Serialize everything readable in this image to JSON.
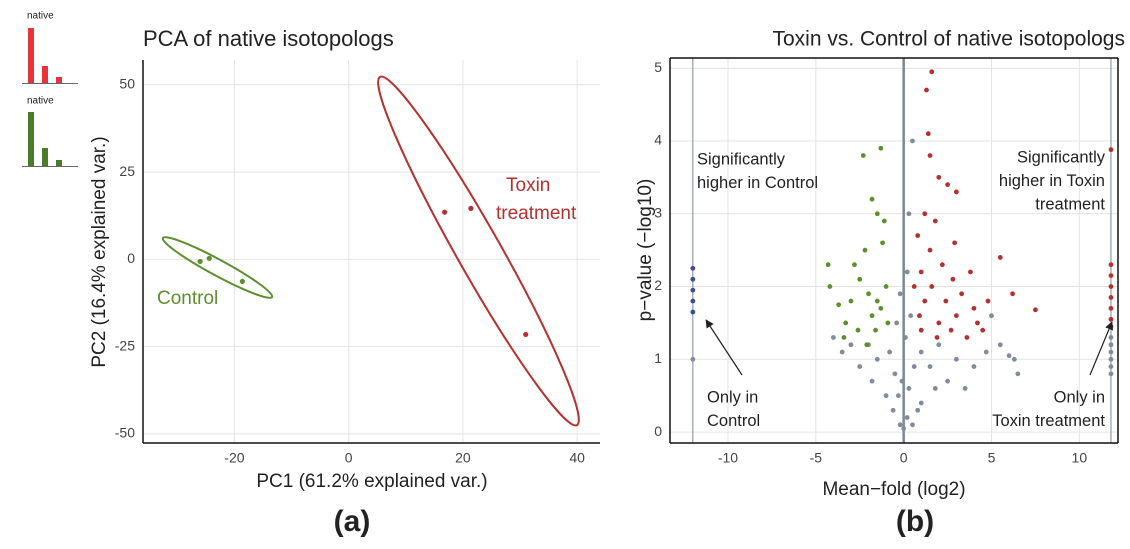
{
  "icons": [
    {
      "label": "native",
      "color": "#e8333a"
    },
    {
      "label": "native",
      "color": "#4a7a2a"
    }
  ],
  "chart_data": [
    {
      "type": "scatter",
      "title": "PCA of native isotopologs",
      "panel_label": "(a)",
      "x_label": "PC1 (61.2% explained var.)",
      "y_label": "PC2 (16.4% explained var.)",
      "xlim": [
        -36,
        44
      ],
      "ylim": [
        -52.6,
        57.1
      ],
      "xticks": [
        -20,
        0,
        20,
        40
      ],
      "yticks": [
        -50,
        -25,
        0,
        25,
        50
      ],
      "grid": true,
      "series": [
        {
          "name": "Control",
          "color": "#5d8f2c",
          "x": [
            -26,
            -24.4,
            -18.6
          ],
          "values": [
            -0.6,
            0.3,
            -6.3
          ]
        },
        {
          "name": "Toxin treatment",
          "color": "#b5302f",
          "x": [
            16.8,
            21.4,
            31
          ],
          "values": [
            13.5,
            14.6,
            -21.5
          ]
        }
      ]
    },
    {
      "type": "scatter",
      "title": "Toxin vs. Control of native isotopologs",
      "panel_label": "(b)",
      "x_label": "Mean−fold (log2)",
      "y_label": "p−value (−log10)",
      "xlim": [
        -13.3,
        12.2
      ],
      "ylim": [
        -0.15,
        5.14
      ],
      "xticks": [
        -10,
        -5,
        0,
        5,
        10
      ],
      "yticks": [
        0,
        1,
        2,
        3,
        4,
        5
      ],
      "grid": true,
      "vlines": [
        -12,
        0,
        11.8
      ],
      "annotations": [
        {
          "lines": [
            "Significantly",
            "higher in Control"
          ]
        },
        {
          "lines": [
            "Significantly",
            "higher in Toxin",
            "treatment"
          ]
        },
        {
          "lines": [
            "Only in",
            "Control"
          ]
        },
        {
          "lines": [
            "Only in",
            "Toxin treatment"
          ]
        }
      ],
      "series": [
        {
          "color": "#7f8c9b",
          "x": [
            0.5,
            -0.2,
            0.0,
            0.2,
            -0.3,
            0.3,
            -0.5,
            0.6,
            -0.8,
            1.0,
            -1.5,
            1.5,
            -2,
            2,
            -3,
            3,
            -4,
            4,
            5.5,
            6,
            6.3,
            -1,
            1,
            -0.6,
            0.8,
            2.5,
            -2.5,
            3.5,
            -0.1,
            0.1,
            0.4,
            -0.4,
            0.2,
            -0.2,
            0.3,
            5,
            6.5,
            -3.5,
            1.8,
            -1.8,
            4.7,
            0.5,
            -12,
            11.8,
            11.8,
            11.8,
            11.8,
            11.8,
            11.8
          ],
          "values": [
            4.0,
            0.1,
            0.05,
            0.2,
            0.5,
            0.6,
            0.8,
            0.9,
            1.1,
            1.1,
            1.0,
            0.9,
            1.2,
            1.2,
            1.2,
            1.0,
            1.3,
            0.9,
            1.2,
            1.05,
            1.0,
            0.5,
            0.4,
            0.3,
            0.3,
            0.7,
            0.9,
            0.6,
            0.7,
            1.3,
            1.6,
            1.5,
            2.2,
            1.9,
            3.0,
            1.6,
            0.8,
            1.1,
            0.6,
            0.7,
            1.1,
            0.1,
            1.0,
            1.3,
            1.2,
            1.1,
            1.0,
            0.9,
            0.8
          ]
        },
        {
          "color": "#5d8f2c",
          "x": [
            -4.3,
            -4.2,
            -3.7,
            -3.3,
            -3,
            -2.8,
            -2.5,
            -2.2,
            -2.0,
            -1.8,
            -1.5,
            -1.3,
            -1.2,
            -1.0,
            -2.3,
            -1.3,
            -1.5,
            -1.8,
            -2.6,
            -3.4,
            -1.6,
            -0.9,
            -2.1,
            -1.1
          ],
          "values": [
            2.3,
            2.0,
            1.75,
            1.5,
            1.8,
            2.3,
            2.1,
            2.5,
            1.9,
            1.6,
            1.8,
            1.7,
            2.6,
            2.0,
            3.8,
            3.9,
            3.0,
            3.2,
            1.4,
            1.3,
            1.4,
            1.5,
            1.2,
            2.9
          ]
        },
        {
          "color": "#b5302f",
          "x": [
            1.6,
            1.3,
            1.4,
            1.5,
            2.0,
            2.5,
            3.0,
            1.2,
            1.8,
            0.8,
            1.5,
            2.2,
            2.8,
            3.3,
            4.0,
            1.0,
            1.6,
            2.4,
            3.0,
            1.2,
            0.9,
            2.0,
            2.7,
            3.6,
            4.5,
            4.8,
            5.5,
            6.2,
            7.5,
            3.8,
            4.2,
            1.9,
            1.0,
            2.9,
            0.6,
            11.8,
            11.8,
            11.8,
            11.8,
            11.8,
            11.8,
            11.8,
            11.8
          ],
          "values": [
            4.95,
            4.7,
            4.1,
            3.8,
            3.5,
            3.4,
            3.3,
            3.0,
            2.9,
            2.7,
            2.5,
            2.3,
            2.1,
            1.9,
            1.7,
            2.2,
            2.0,
            1.8,
            1.6,
            1.8,
            1.6,
            1.5,
            1.4,
            1.3,
            1.4,
            1.8,
            2.4,
            1.9,
            1.68,
            2.2,
            1.5,
            1.3,
            1.4,
            2.6,
            2.0,
            3.88,
            2.3,
            2.15,
            2.0,
            1.85,
            1.7,
            1.55,
            1.45
          ]
        },
        {
          "color": "#3c4b9c",
          "x": [
            -12,
            -12,
            -12,
            -12,
            -12
          ],
          "values": [
            2.25,
            2.1,
            1.95,
            1.8,
            1.65
          ]
        }
      ]
    }
  ]
}
